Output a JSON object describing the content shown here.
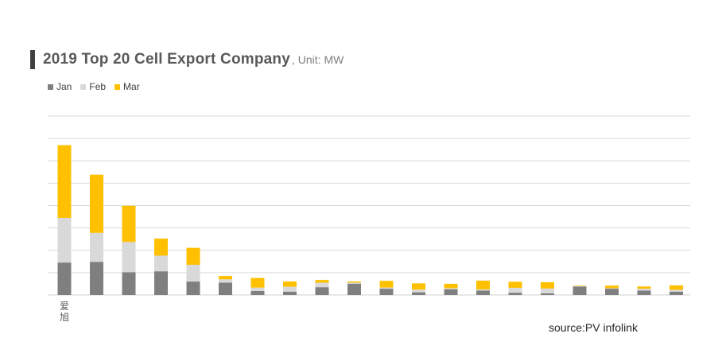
{
  "title": "2019 Top 20 Cell Export Company",
  "unit": ", Unit:  MW",
  "source": "source:PV infolink",
  "colors": {
    "jan": "#7f7f7f",
    "feb": "#d9d9d9",
    "mar": "#ffc000",
    "grid": "#d9d9d9",
    "title_bar": "#404040"
  },
  "chart_data": {
    "type": "bar",
    "stacked": true,
    "categories": [
      "爱旭",
      "",
      "",
      "",
      "",
      "",
      "",
      "",
      "",
      "",
      "",
      "",
      "",
      "",
      "",
      "",
      "",
      "",
      "",
      ""
    ],
    "series": [
      {
        "name": "Jan",
        "values": [
          145,
          148,
          102,
          106,
          60,
          55,
          18,
          15,
          35,
          50,
          28,
          12,
          25,
          20,
          10,
          7,
          38,
          28,
          20,
          15
        ]
      },
      {
        "name": "Feb",
        "values": [
          200,
          130,
          135,
          70,
          75,
          15,
          15,
          22,
          20,
          5,
          5,
          12,
          5,
          5,
          22,
          22,
          2,
          2,
          8,
          8
        ]
      },
      {
        "name": "Mar",
        "values": [
          325,
          260,
          162,
          76,
          76,
          15,
          43,
          23,
          12,
          5,
          30,
          28,
          20,
          39,
          27,
          28,
          2,
          12,
          10,
          20
        ]
      }
    ],
    "ylim": [
      0,
      800
    ],
    "grid": true,
    "legend_position": "top-left",
    "xlabel": "",
    "ylabel": ""
  }
}
